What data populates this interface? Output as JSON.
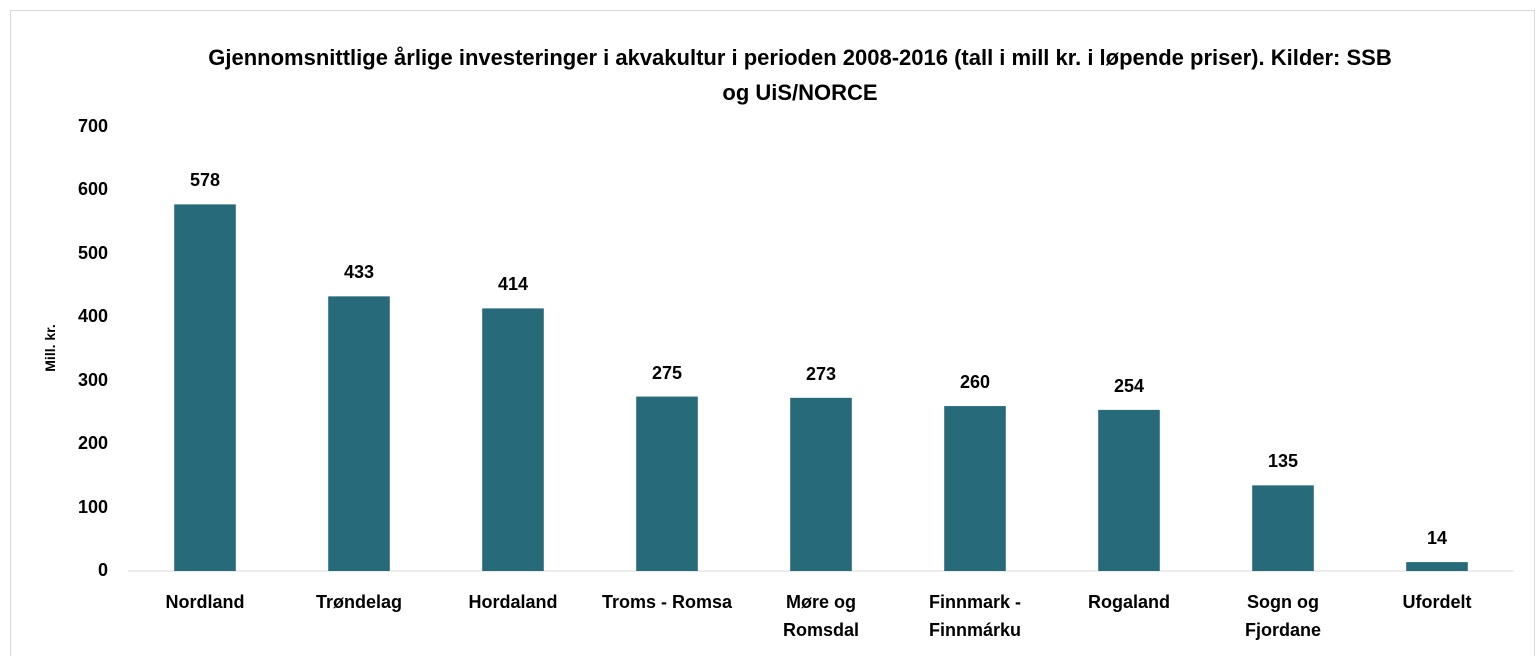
{
  "chart_data": {
    "type": "bar",
    "title": "Gjennomsnittlige årlige investeringer i akvakultur i perioden 2008-2016 (tall i mill kr. i løpende priser). Kilder: SSB og UiS/NORCE",
    "y_label": "Mill. kr.",
    "categories": [
      "Nordland",
      "Trøndelag",
      "Hordaland",
      "Troms - Romsa",
      "Møre og Romsdal",
      "Finnmark - Finnmárku",
      "Rogaland",
      "Sogn og Fjordane",
      "Ufordelt"
    ],
    "values": [
      578,
      433,
      414,
      275,
      273,
      260,
      254,
      135,
      14
    ],
    "color": "#276a7a",
    "ylim": [
      0,
      700
    ],
    "yticks": [
      0,
      100,
      200,
      300,
      400,
      500,
      600,
      700
    ],
    "grid": false
  }
}
